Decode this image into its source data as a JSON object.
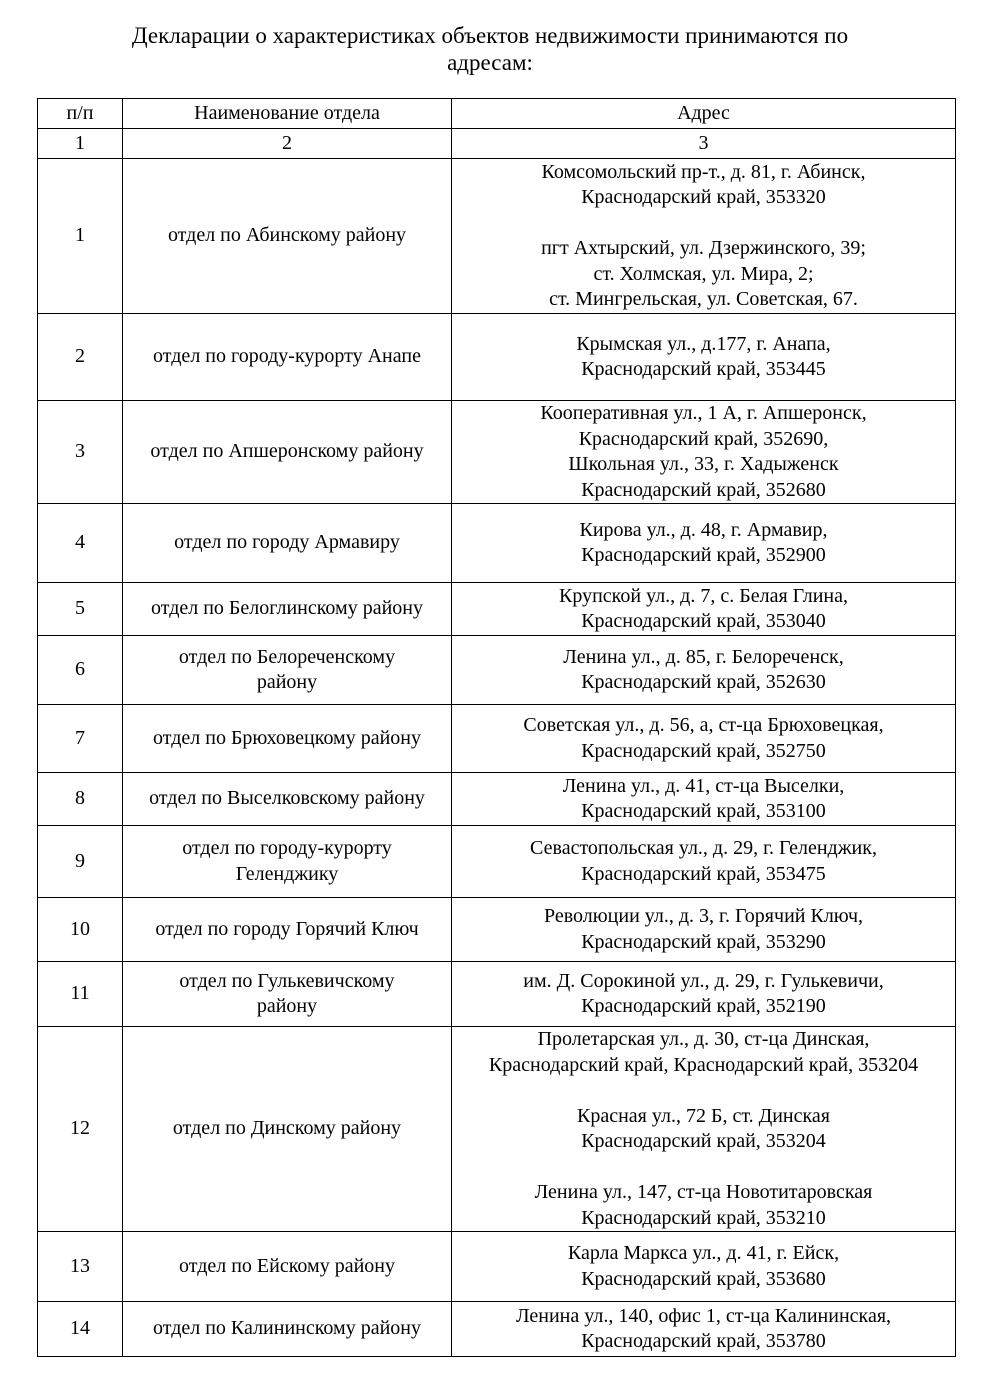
{
  "title": [
    "Декларации о характеристиках объектов недвижимости принимаются по",
    "адресам:"
  ],
  "table": {
    "headers": [
      "п/п",
      "Наименование отдела",
      "Адрес"
    ],
    "column_numbers": [
      "1",
      "2",
      "3"
    ],
    "rows": [
      {
        "num": "1",
        "dept": [
          "отдел по Абинскому району"
        ],
        "address": [
          "Комсомольский пр-т., д. 81, г. Абинск,",
          "Краснодарский край, 353320",
          "",
          "пгт Ахтырский, ул. Дзержинского, 39;",
          "ст. Холмская, ул. Мира, 2;",
          "ст. Мингрельская, ул. Советская, 67."
        ]
      },
      {
        "num": "2",
        "dept": [
          "отдел по городу-курорту Анапе"
        ],
        "address": [
          "Крымская ул., д.177, г. Анапа,",
          "Краснодарский край, 353445"
        ]
      },
      {
        "num": "3",
        "dept": [
          "отдел по Апшеронскому району"
        ],
        "address": [
          "Кооперативная ул., 1 А, г. Апшеронск,",
          "Краснодарский край, 352690,",
          "Школьная ул., 33, г. Хадыженск",
          "Краснодарский край, 352680"
        ]
      },
      {
        "num": "4",
        "dept": [
          "отдел по городу Армавиру"
        ],
        "address": [
          "Кирова ул., д. 48, г. Армавир,",
          "Краснодарский край, 352900"
        ]
      },
      {
        "num": "5",
        "dept": [
          "отдел по Белоглинскому району"
        ],
        "address": [
          "Крупской ул., д. 7, с. Белая Глина,",
          "Краснодарский край, 353040"
        ]
      },
      {
        "num": "6",
        "dept": [
          "отдел по Белореченскому",
          "району"
        ],
        "address": [
          "Ленина ул., д. 85, г. Белореченск,",
          "Краснодарский край, 352630"
        ]
      },
      {
        "num": "7",
        "dept": [
          "отдел по Брюховецкому району"
        ],
        "address": [
          "Советская ул., д. 56, а, ст-ца Брюховецкая,",
          "Краснодарский край, 352750"
        ]
      },
      {
        "num": "8",
        "dept": [
          "отдел по Выселковскому району"
        ],
        "address": [
          "Ленина ул., д. 41, ст-ца Выселки,",
          "Краснодарский край, 353100"
        ]
      },
      {
        "num": "9",
        "dept": [
          "отдел по городу-курорту",
          "Геленджику"
        ],
        "address": [
          "Севастопольская ул., д. 29, г. Геленджик,",
          "Краснодарский край, 353475"
        ]
      },
      {
        "num": "10",
        "dept": [
          "отдел по городу Горячий Ключ"
        ],
        "address": [
          "Революции ул., д. 3, г. Горячий Ключ,",
          "Краснодарский край, 353290"
        ]
      },
      {
        "num": "11",
        "dept": [
          "отдел по Гулькевичскому",
          "району"
        ],
        "address": [
          "им. Д. Сорокиной ул., д. 29, г. Гулькевичи,",
          "Краснодарский край, 352190"
        ]
      },
      {
        "num": "12",
        "dept": [
          "отдел по Динскому району"
        ],
        "address": [
          "Пролетарская ул., д. 30, ст-ца Динская,",
          "Краснодарский край, Краснодарский край, 353204",
          "",
          "Красная ул., 72 Б, ст. Динская",
          "Краснодарский край, 353204",
          "",
          "Ленина ул., 147, ст-ца Новотитаровская",
          "Краснодарский край, 353210"
        ]
      },
      {
        "num": "13",
        "dept": [
          "отдел по Ейскому району"
        ],
        "address": [
          "Карла Маркса ул., д. 41, г. Ейск,",
          "Краснодарский край, 353680"
        ]
      },
      {
        "num": "14",
        "dept": [
          "отдел по Калининскому району"
        ],
        "address": [
          "Ленина ул., 140, офис 1, ст-ца Калининская,",
          "Краснодарский край, 353780"
        ]
      }
    ]
  }
}
